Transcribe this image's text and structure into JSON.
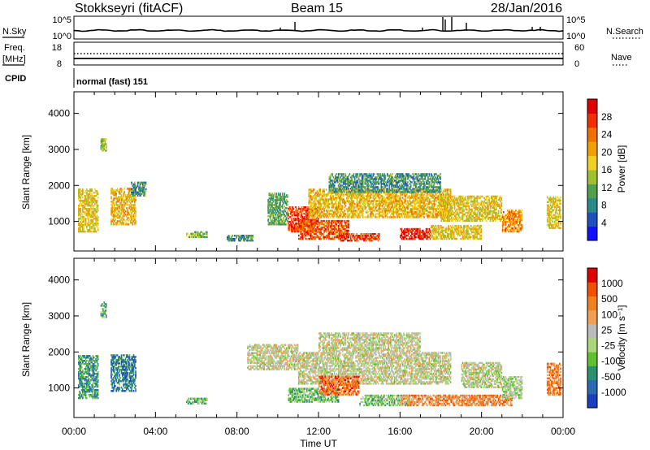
{
  "header": {
    "station": "Stokkseyri (fitACF)",
    "beam": "Beam 15",
    "date": "28/Jan/2016"
  },
  "top_panels": {
    "nsky": {
      "label": "N.Sky",
      "ticks": [
        "10^5",
        "10^0"
      ]
    },
    "nsearch": {
      "label": "N.Search",
      "ticks": [
        "10^5",
        "10^0"
      ]
    },
    "freq": {
      "label_line1": "Freq.",
      "label_line2": "[MHz]",
      "ticks": [
        "18",
        "8"
      ]
    },
    "nave": {
      "label": "Nave",
      "ticks": [
        "60",
        "0"
      ]
    },
    "cpid": {
      "label": "CPID",
      "value": "normal (fast) 151"
    }
  },
  "chart_data": [
    {
      "type": "heatmap",
      "name": "power",
      "ylabel": "Slant Range [km]",
      "ylim": [
        180,
        4600
      ],
      "yticks": [
        1000,
        2000,
        3000,
        4000
      ],
      "xlabel": "",
      "xlim": [
        0,
        24
      ],
      "xticks": [
        "00:00",
        "04:00",
        "08:00",
        "12:00",
        "16:00",
        "20:00",
        "00:00"
      ],
      "colorbar": {
        "label": "Power [dB]",
        "ticks": [
          "4",
          "8",
          "12",
          "16",
          "20",
          "24",
          "28"
        ],
        "colors": [
          "#1010ff",
          "#2050c0",
          "#2a8a8a",
          "#50a050",
          "#a0c030",
          "#f0d020",
          "#f0a000",
          "#f07000",
          "#f03000",
          "#e00000"
        ]
      },
      "regions": [
        {
          "t0": 0.2,
          "t1": 1.2,
          "r0": 700,
          "r1": 1900,
          "v": 0.55
        },
        {
          "t0": 1.3,
          "t1": 1.6,
          "r0": 2950,
          "r1": 3300,
          "v": 0.45
        },
        {
          "t0": 1.8,
          "t1": 3.0,
          "r0": 900,
          "r1": 1900,
          "v": 0.6
        },
        {
          "t0": 2.8,
          "t1": 3.5,
          "r0": 1700,
          "r1": 2100,
          "v": 0.3
        },
        {
          "t0": 5.5,
          "t1": 6.5,
          "r0": 550,
          "r1": 700,
          "v": 0.4
        },
        {
          "t0": 7.5,
          "t1": 8.8,
          "r0": 450,
          "r1": 600,
          "v": 0.3
        },
        {
          "t0": 9.5,
          "t1": 10.5,
          "r0": 900,
          "r1": 1800,
          "v": 0.35
        },
        {
          "t0": 10.5,
          "t1": 12.0,
          "r0": 700,
          "r1": 1400,
          "v": 0.85
        },
        {
          "t0": 11.0,
          "t1": 13.5,
          "r0": 500,
          "r1": 1000,
          "v": 0.8
        },
        {
          "t0": 11.5,
          "t1": 18.5,
          "r0": 1100,
          "r1": 1900,
          "v": 0.6
        },
        {
          "t0": 12.5,
          "t1": 18.0,
          "r0": 1800,
          "r1": 2300,
          "v": 0.3
        },
        {
          "t0": 13.0,
          "t1": 15.0,
          "r0": 450,
          "r1": 650,
          "v": 0.85
        },
        {
          "t0": 16.0,
          "t1": 17.5,
          "r0": 500,
          "r1": 800,
          "v": 0.9
        },
        {
          "t0": 17.5,
          "t1": 20.0,
          "r0": 500,
          "r1": 900,
          "v": 0.55
        },
        {
          "t0": 18.0,
          "t1": 21.0,
          "r0": 1000,
          "r1": 1700,
          "v": 0.55
        },
        {
          "t0": 21.0,
          "t1": 22.0,
          "r0": 700,
          "r1": 1300,
          "v": 0.7
        },
        {
          "t0": 23.2,
          "t1": 23.9,
          "r0": 800,
          "r1": 1700,
          "v": 0.55
        }
      ]
    },
    {
      "type": "heatmap",
      "name": "velocity",
      "ylabel": "Slant Range [km]",
      "ylim": [
        180,
        4600
      ],
      "yticks": [
        1000,
        2000,
        3000,
        4000
      ],
      "xlabel": "Time UT",
      "xlim": [
        0,
        24
      ],
      "xticks": [
        "00:00",
        "04:00",
        "08:00",
        "12:00",
        "16:00",
        "20:00",
        "00:00"
      ],
      "colorbar": {
        "label": "Velocity [m s⁻¹]",
        "ticks": [
          "1000",
          "500",
          "100",
          "25",
          "-25",
          "-100",
          "-500",
          "-1000"
        ],
        "colors": [
          "#1840c0",
          "#2a6ab0",
          "#2a9070",
          "#60c030",
          "#a8d878",
          "#bbbbbb",
          "#f0a050",
          "#f08020",
          "#f05000",
          "#e00000"
        ]
      },
      "regions": [
        {
          "t0": 0.2,
          "t1": 1.2,
          "r0": 700,
          "r1": 1900,
          "v": 0.25
        },
        {
          "t0": 1.3,
          "t1": 1.6,
          "r0": 2950,
          "r1": 3400,
          "v": 0.3
        },
        {
          "t0": 1.8,
          "t1": 3.0,
          "r0": 900,
          "r1": 1900,
          "v": 0.2
        },
        {
          "t0": 5.5,
          "t1": 6.5,
          "r0": 550,
          "r1": 700,
          "v": 0.35
        },
        {
          "t0": 8.5,
          "t1": 11.0,
          "r0": 1500,
          "r1": 2200,
          "v": 0.52
        },
        {
          "t0": 10.5,
          "t1": 13.0,
          "r0": 600,
          "r1": 1000,
          "v": 0.35
        },
        {
          "t0": 11.0,
          "t1": 18.5,
          "r0": 1100,
          "r1": 2000,
          "v": 0.52
        },
        {
          "t0": 12.0,
          "t1": 17.0,
          "r0": 2000,
          "r1": 2500,
          "v": 0.52
        },
        {
          "t0": 12.0,
          "t1": 14.0,
          "r0": 800,
          "r1": 1300,
          "v": 0.8
        },
        {
          "t0": 14.0,
          "t1": 16.5,
          "r0": 500,
          "r1": 800,
          "v": 0.4
        },
        {
          "t0": 16.0,
          "t1": 21.5,
          "r0": 500,
          "r1": 800,
          "v": 0.72
        },
        {
          "t0": 19.0,
          "t1": 21.0,
          "r0": 1000,
          "r1": 1700,
          "v": 0.5
        },
        {
          "t0": 21.0,
          "t1": 22.0,
          "r0": 700,
          "r1": 1300,
          "v": 0.45
        },
        {
          "t0": 23.2,
          "t1": 23.9,
          "r0": 800,
          "r1": 1700,
          "v": 0.75
        }
      ]
    }
  ]
}
